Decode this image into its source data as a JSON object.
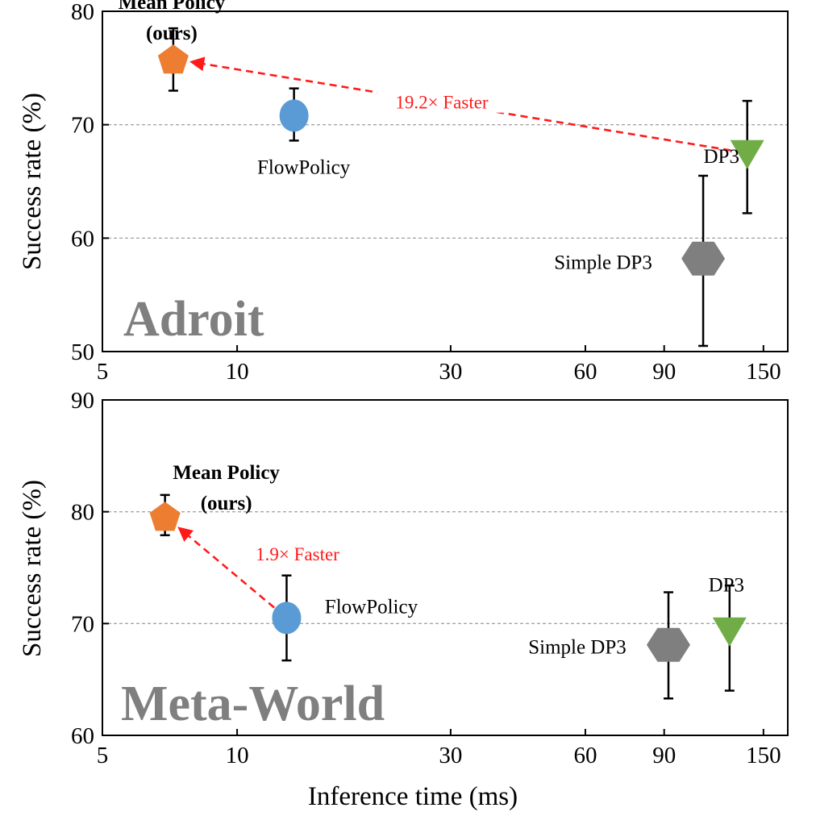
{
  "chart_data": [
    {
      "type": "scatter",
      "panel": "Adroit",
      "xscale": "log",
      "xlim": [
        5,
        170
      ],
      "ylim": [
        50,
        80
      ],
      "xticks": [
        5,
        10,
        30,
        60,
        90,
        150
      ],
      "yticks": [
        50,
        60,
        70,
        80
      ],
      "grid_y": [
        60,
        70
      ],
      "ylabel": "Success rate (%)",
      "points": [
        {
          "name": "Mean Policy",
          "sublabel": "(ours)",
          "x": 7.2,
          "y": 75.8,
          "err_low": 73.0,
          "err_high": 78.5,
          "marker": "pentagon",
          "color": "#ed7d31",
          "bold": true
        },
        {
          "name": "FlowPolicy",
          "sublabel": "",
          "x": 13.4,
          "y": 70.8,
          "err_low": 68.6,
          "err_high": 73.2,
          "marker": "ellipse",
          "color": "#5b9bd5",
          "bold": false
        },
        {
          "name": "DP3",
          "sublabel": "",
          "x": 138,
          "y": 67.5,
          "err_low": 62.2,
          "err_high": 72.1,
          "marker": "triangle-down",
          "color": "#70ad47",
          "bold": false
        },
        {
          "name": "Simple DP3",
          "sublabel": "",
          "x": 110,
          "y": 58.2,
          "err_low": 50.5,
          "err_high": 65.5,
          "marker": "hexagon",
          "color": "#7f7f7f",
          "bold": false
        }
      ],
      "speedup": {
        "from": "DP3",
        "to": "Mean Policy",
        "label": "19.2× Faster"
      }
    },
    {
      "type": "scatter",
      "panel": "Meta-World",
      "xscale": "log",
      "xlim": [
        5,
        170
      ],
      "ylim": [
        60,
        90
      ],
      "xticks": [
        5,
        10,
        30,
        60,
        90,
        150
      ],
      "yticks": [
        60,
        70,
        80,
        90
      ],
      "grid_y": [
        70,
        80
      ],
      "ylabel": "Success rate (%)",
      "xlabel": "Inference time (ms)",
      "points": [
        {
          "name": "Mean Policy",
          "sublabel": "(ours)",
          "x": 6.9,
          "y": 79.6,
          "err_low": 77.9,
          "err_high": 81.5,
          "marker": "pentagon",
          "color": "#ed7d31",
          "bold": true
        },
        {
          "name": "FlowPolicy",
          "sublabel": "",
          "x": 12.9,
          "y": 70.5,
          "err_low": 66.7,
          "err_high": 74.3,
          "marker": "ellipse",
          "color": "#5b9bd5",
          "bold": false
        },
        {
          "name": "Simple DP3",
          "sublabel": "",
          "x": 92,
          "y": 68.1,
          "err_low": 63.3,
          "err_high": 72.8,
          "marker": "hexagon",
          "color": "#7f7f7f",
          "bold": false
        },
        {
          "name": "DP3",
          "sublabel": "",
          "x": 126,
          "y": 69.4,
          "err_low": 64.0,
          "err_high": 73.4,
          "marker": "triangle-down",
          "color": "#70ad47",
          "bold": false
        }
      ],
      "speedup": {
        "from": "FlowPolicy",
        "to": "Mean Policy",
        "label": "1.9× Faster"
      }
    }
  ],
  "colors": {
    "arrow": "#ff1a1a",
    "grid": "#a6a6a6",
    "panel_name": "#7f7f7f"
  }
}
